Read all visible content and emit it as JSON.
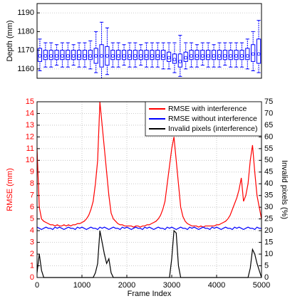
{
  "chart_data": [
    {
      "type": "box",
      "ylabel": "Depth (mm)",
      "color": "#0000ff",
      "xlim": [
        0,
        5000
      ],
      "ylim": [
        1155,
        1195
      ],
      "yticks": [
        1160,
        1170,
        1180,
        1190
      ],
      "grid": true,
      "x": [
        62.5,
        187.5,
        312.5,
        437.5,
        562.5,
        687.5,
        812.5,
        937.5,
        1062.5,
        1187.5,
        1312.5,
        1437.5,
        1562.5,
        1687.5,
        1812.5,
        1937.5,
        2062.5,
        2187.5,
        2312.5,
        2437.5,
        2562.5,
        2687.5,
        2812.5,
        2937.5,
        3062.5,
        3187.5,
        3312.5,
        3437.5,
        3562.5,
        3687.5,
        3812.5,
        3937.5,
        4062.5,
        4187.5,
        4312.5,
        4437.5,
        4562.5,
        4687.5,
        4812.5,
        4937.5
      ],
      "low": [
        1159,
        1161,
        1161,
        1162,
        1161,
        1161,
        1162,
        1161,
        1161,
        1160,
        1158,
        1155,
        1157,
        1161,
        1161,
        1162,
        1161,
        1161,
        1162,
        1161,
        1161,
        1161,
        1160,
        1160,
        1158,
        1156,
        1160,
        1161,
        1161,
        1162,
        1161,
        1161,
        1161,
        1162,
        1161,
        1161,
        1161,
        1160,
        1159,
        1158
      ],
      "q1": [
        1164,
        1165,
        1165,
        1165,
        1165,
        1165,
        1165,
        1165,
        1165,
        1165,
        1163,
        1161,
        1162,
        1165,
        1165,
        1165,
        1165,
        1165,
        1165,
        1165,
        1165,
        1165,
        1165,
        1164,
        1163,
        1161,
        1164,
        1165,
        1165,
        1165,
        1165,
        1165,
        1165,
        1165,
        1165,
        1165,
        1165,
        1165,
        1164,
        1163
      ],
      "median": [
        1167,
        1167,
        1167,
        1167,
        1167,
        1167,
        1167,
        1167,
        1167,
        1167,
        1167,
        1167,
        1167,
        1167,
        1167,
        1167,
        1167,
        1167,
        1167,
        1167,
        1167,
        1167,
        1167,
        1166,
        1165,
        1164,
        1166,
        1167,
        1167,
        1167,
        1167,
        1167,
        1167,
        1167,
        1167,
        1167,
        1167,
        1167,
        1168,
        1168
      ],
      "q3": [
        1171,
        1170,
        1170,
        1170,
        1170,
        1170,
        1170,
        1170,
        1170,
        1170,
        1171,
        1173,
        1172,
        1170,
        1170,
        1170,
        1170,
        1170,
        1170,
        1170,
        1170,
        1170,
        1170,
        1169,
        1168,
        1168,
        1169,
        1170,
        1170,
        1170,
        1170,
        1170,
        1170,
        1170,
        1170,
        1170,
        1170,
        1171,
        1173,
        1176
      ],
      "high": [
        1176,
        1174,
        1174,
        1173,
        1174,
        1174,
        1173,
        1174,
        1174,
        1175,
        1180,
        1185,
        1182,
        1174,
        1174,
        1173,
        1174,
        1174,
        1173,
        1174,
        1174,
        1174,
        1174,
        1174,
        1174,
        1178,
        1174,
        1174,
        1173,
        1174,
        1174,
        1173,
        1174,
        1174,
        1174,
        1174,
        1174,
        1176,
        1180,
        1186
      ]
    },
    {
      "type": "line",
      "xlabel": "Frame Index",
      "ylabel": "RMSE (mm)",
      "y2label": "Invalid pixels (%)",
      "ylabel_color": "#ff0000",
      "xlim": [
        0,
        5000
      ],
      "xticks": [
        0,
        1000,
        2000,
        3000,
        4000,
        5000
      ],
      "ylim": [
        0,
        15
      ],
      "yticks": [
        0,
        1,
        2,
        3,
        4,
        5,
        6,
        7,
        8,
        9,
        10,
        11,
        12,
        13,
        14,
        15
      ],
      "y2lim": [
        0,
        75
      ],
      "y2ticks": [
        0,
        5,
        10,
        15,
        20,
        25,
        30,
        35,
        40,
        45,
        50,
        55,
        60,
        65,
        70,
        75
      ],
      "grid": true,
      "legend": "upper right",
      "x": [
        0,
        50,
        100,
        150,
        200,
        250,
        300,
        350,
        400,
        450,
        500,
        550,
        600,
        650,
        700,
        750,
        800,
        850,
        900,
        950,
        1000,
        1050,
        1100,
        1150,
        1200,
        1250,
        1300,
        1350,
        1400,
        1450,
        1500,
        1550,
        1600,
        1650,
        1700,
        1750,
        1800,
        1850,
        1900,
        1950,
        2000,
        2050,
        2100,
        2150,
        2200,
        2250,
        2300,
        2350,
        2400,
        2450,
        2500,
        2550,
        2600,
        2650,
        2700,
        2750,
        2800,
        2850,
        2900,
        2950,
        3000,
        3050,
        3100,
        3150,
        3200,
        3250,
        3300,
        3350,
        3400,
        3450,
        3500,
        3550,
        3600,
        3650,
        3700,
        3750,
        3800,
        3850,
        3900,
        3950,
        4000,
        4050,
        4100,
        4150,
        4200,
        4250,
        4300,
        4350,
        4400,
        4450,
        4500,
        4550,
        4600,
        4650,
        4700,
        4750,
        4800,
        4850,
        4900,
        4950,
        5000
      ],
      "series": [
        {
          "name": "RMSE with interference",
          "color": "#ff0000",
          "axis": "y",
          "values": [
            11,
            6,
            5,
            4.8,
            4.7,
            4.6,
            4.5,
            4.5,
            4.4,
            4.5,
            4.4,
            4.4,
            4.5,
            4.4,
            4.5,
            4.4,
            4.5,
            4.5,
            4.6,
            4.6,
            4.7,
            4.8,
            5,
            5.3,
            5.8,
            6.5,
            8,
            10,
            15,
            13,
            11,
            9,
            7,
            5.5,
            5,
            4.8,
            4.6,
            4.5,
            4.5,
            4.4,
            4.4,
            4.4,
            4.4,
            4.3,
            4.4,
            4.4,
            4.3,
            4.4,
            4.4,
            4.5,
            4.5,
            4.6,
            4.7,
            4.8,
            5,
            5.3,
            5.8,
            6.5,
            8,
            9.5,
            11,
            12,
            10,
            8,
            6,
            5.2,
            4.8,
            4.6,
            4.5,
            4.4,
            4.4,
            4.4,
            4.3,
            4.4,
            4.3,
            4.4,
            4.4,
            4.4,
            4.4,
            4.4,
            4.5,
            4.5,
            4.6,
            4.7,
            4.8,
            5,
            5.3,
            5.8,
            6.3,
            6.8,
            7.5,
            8.5,
            6.5,
            7,
            8,
            10,
            11.3,
            9,
            7,
            6,
            5
          ]
        },
        {
          "name": "RMSE without interference",
          "color": "#0000ff",
          "axis": "y",
          "values": [
            4.3,
            4.2,
            4.1,
            4.2,
            4.3,
            4.2,
            4.2,
            4.1,
            4.3,
            4.2,
            4.3,
            4.2,
            4.1,
            4.2,
            4.3,
            4.2,
            4.2,
            4.1,
            4.3,
            4.2,
            4.3,
            4.2,
            4.1,
            4.2,
            4.3,
            4.2,
            4.2,
            4.1,
            4.3,
            4.2,
            4.3,
            4.2,
            4.1,
            4.2,
            4.3,
            4.2,
            4.2,
            4.1,
            4.3,
            4.2,
            4.3,
            4.2,
            4.1,
            4.2,
            4.3,
            4.2,
            4.2,
            4.1,
            4.3,
            4.2,
            4.3,
            4.2,
            4.1,
            4.2,
            4.3,
            4.2,
            4.2,
            4.1,
            4.3,
            4.2,
            4.3,
            4.2,
            4.1,
            4.2,
            4.3,
            4.2,
            4.2,
            4.1,
            4.3,
            4.2,
            4.3,
            4.2,
            4.1,
            4.2,
            4.3,
            4.2,
            4.2,
            4.1,
            4.3,
            4.2,
            4.3,
            4.2,
            4.1,
            4.2,
            4.3,
            4.2,
            4.2,
            4.1,
            4.3,
            4.2,
            4.3,
            4.2,
            4.1,
            4.2,
            4.3,
            4.2,
            4.2,
            4.1,
            4.3,
            4.2,
            4.2
          ]
        },
        {
          "name": "Invalid pixels (interference)",
          "color": "#000000",
          "axis": "y2",
          "values": [
            2,
            10,
            3,
            0,
            0,
            0,
            0,
            0,
            0,
            0,
            0,
            0,
            0,
            0,
            0,
            0,
            0,
            0,
            0,
            0,
            0,
            0,
            0,
            0,
            0,
            0,
            2,
            6,
            20,
            15,
            10,
            6,
            8,
            2,
            0,
            0,
            0,
            0,
            0,
            0,
            0,
            0,
            0,
            0,
            0,
            0,
            0,
            0,
            0,
            0,
            0,
            0,
            0,
            0,
            0,
            0,
            0,
            0,
            0,
            0,
            8,
            20,
            19,
            5,
            0,
            0,
            0,
            0,
            0,
            0,
            0,
            0,
            0,
            0,
            0,
            0,
            0,
            0,
            0,
            0,
            0,
            0,
            0,
            0,
            0,
            0,
            0,
            0,
            0,
            0,
            0,
            0,
            0,
            0,
            0,
            4,
            12,
            10,
            6,
            3,
            0
          ]
        }
      ]
    }
  ]
}
